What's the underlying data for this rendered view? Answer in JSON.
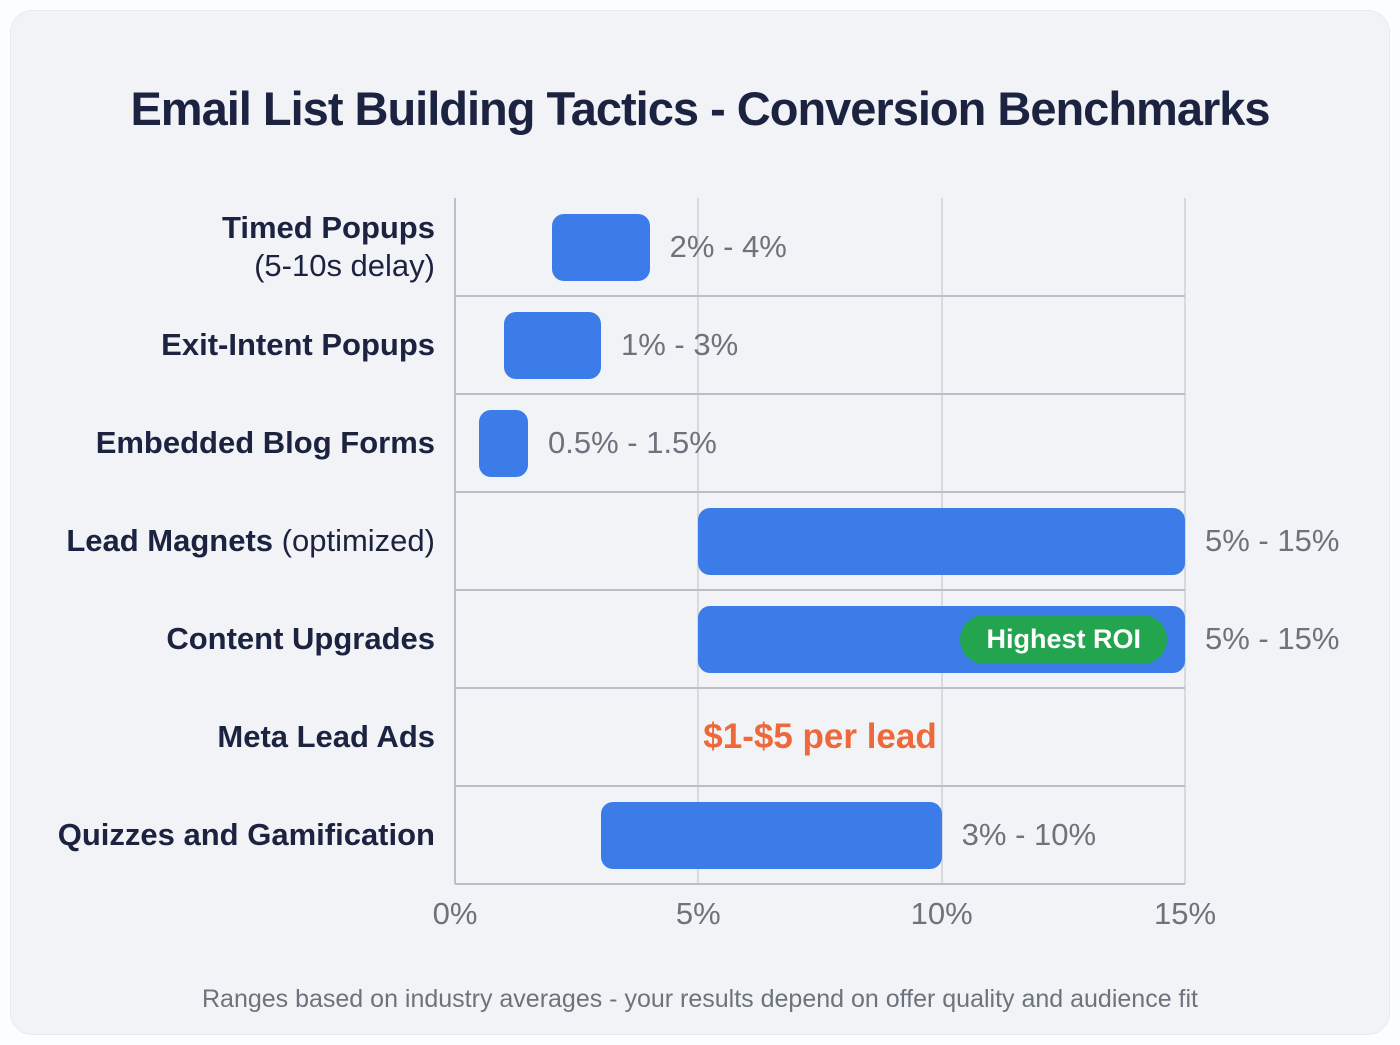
{
  "title": "Email List Building Tactics - Conversion Benchmarks",
  "footer": "Ranges based on industry averages - your results depend on offer quality and audience fit",
  "colors": {
    "bar_blue": "#3b7ce9",
    "badge_green": "#23a44f",
    "note_orange": "#ee693a",
    "heading_navy": "#1b2340",
    "muted_gray": "#6d737d",
    "card_background": "#f1f3f6",
    "page_background": "#fcfdfe",
    "grid_line": "#d6dade",
    "frame_line": "#b9bfc8"
  },
  "chart_data": {
    "type": "bar",
    "orientation": "horizontal",
    "unit": "percent",
    "x_range": [
      0,
      15
    ],
    "grid": true,
    "x_ticks": [
      {
        "label": "0%",
        "value": 0
      },
      {
        "label": "5%",
        "value": 5
      },
      {
        "label": "10%",
        "value": 10
      },
      {
        "label": "15%",
        "value": 15
      }
    ],
    "rows": [
      {
        "label": "Timed Popups",
        "sublabel": "(5-10s delay)",
        "sublabel_position": "newline",
        "min": 2,
        "max": 4,
        "range_label": "2% - 4%"
      },
      {
        "label": "Exit-Intent Popups",
        "min": 1,
        "max": 3,
        "range_label": "1% - 3%"
      },
      {
        "label": "Embedded Blog Forms",
        "min": 0.5,
        "max": 1.5,
        "range_label": "0.5% - 1.5%"
      },
      {
        "label": "Lead Magnets",
        "sublabel": "(optimized)",
        "sublabel_position": "inline",
        "min": 5,
        "max": 15,
        "range_label": "5% - 15%"
      },
      {
        "label": "Content Upgrades",
        "min": 5,
        "max": 15,
        "range_label": "5% - 15%",
        "badge": "Highest ROI"
      },
      {
        "label": "Meta Lead Ads",
        "note": "$1-$5 per lead"
      },
      {
        "label": "Quizzes and Gamification",
        "min": 3,
        "max": 10,
        "range_label": "3% - 10%"
      }
    ]
  }
}
